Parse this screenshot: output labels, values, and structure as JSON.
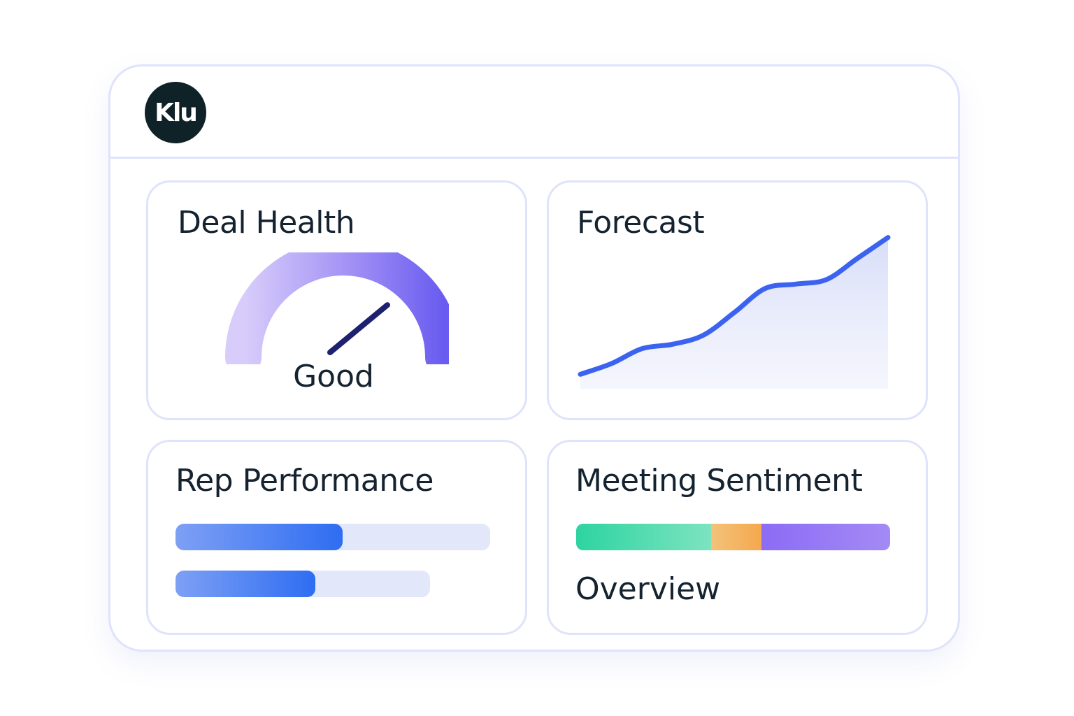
{
  "header": {
    "logo_text": "Klu"
  },
  "cards": {
    "deal_health": {
      "title": "Deal Health",
      "gauge_label": "Good",
      "gauge_level": 0.78
    },
    "forecast": {
      "title": "Forecast"
    },
    "rep_performance": {
      "title": "Rep Performance",
      "bars": [
        0.53,
        0.55
      ]
    },
    "meeting_sentiment": {
      "title": "Meeting Sentiment",
      "segments": [
        {
          "fraction": 0.43,
          "color_start": "#2dd4a0",
          "color_end": "#7de3c0"
        },
        {
          "fraction": 0.16,
          "color_start": "#f3c27a",
          "color_end": "#f5a84e"
        },
        {
          "fraction": 0.41,
          "color_start": "#8b6cf5",
          "color_end": "#a48af5"
        }
      ],
      "label": "Overview"
    }
  },
  "chart_data": {
    "type": "area",
    "x": [
      0,
      1,
      2,
      3,
      4,
      5,
      6,
      7,
      8,
      9,
      10
    ],
    "values": [
      5,
      12,
      22,
      25,
      31,
      46,
      62,
      65,
      68,
      82,
      96
    ],
    "title": "Forecast",
    "grid": false,
    "legend": "none"
  },
  "colors": {
    "accent_line": "#3b63f0",
    "border": "#dfe3fb",
    "text": "#152330",
    "logo_bg": "#0f2228"
  },
  "icons": {
    "logo": "klu-logo-icon",
    "gauge_needle": "gauge-needle-icon"
  }
}
